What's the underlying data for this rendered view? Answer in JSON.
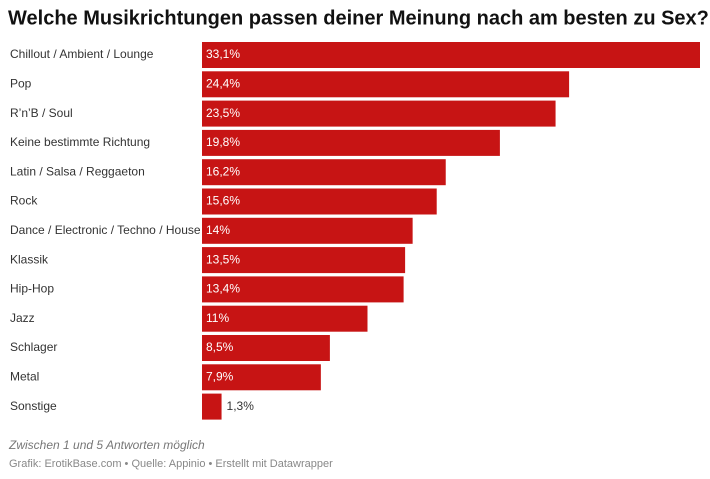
{
  "chart_data": {
    "type": "bar",
    "orientation": "horizontal",
    "title": "Welche Musikrichtungen passen deiner Meinung nach am besten zu Sex?",
    "categories": [
      "Chillout / Ambient / Lounge",
      "Pop",
      "R’n’B / Soul",
      "Keine bestimmte Richtung",
      "Latin / Salsa / Reggaeton",
      "Rock",
      "Dance / Electronic / Techno / House",
      "Klassik",
      "Hip-Hop",
      "Jazz",
      "Schlager",
      "Metal",
      "Sonstige"
    ],
    "values": [
      33.1,
      24.4,
      23.5,
      19.8,
      16.2,
      15.6,
      14,
      13.5,
      13.4,
      11,
      8.5,
      7.9,
      1.3
    ],
    "value_labels": [
      "33,1%",
      "24,4%",
      "23,5%",
      "19,8%",
      "16,2%",
      "15,6%",
      "14%",
      "13,5%",
      "13,4%",
      "11%",
      "8,5%",
      "7,9%",
      "1,3%"
    ],
    "color": "#c71414",
    "note": "Zwischen 1 und 5 Antworten möglich",
    "source": "Grafik: ErotikBase.com • Quelle: Appinio • Erstellt mit Datawrapper"
  }
}
